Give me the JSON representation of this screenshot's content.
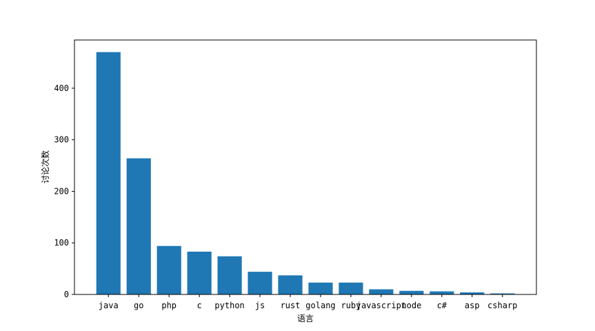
{
  "chart_data": {
    "type": "bar",
    "title": "",
    "xlabel": "语言",
    "ylabel": "讨论次数",
    "categories": [
      "java",
      "go",
      "php",
      "c",
      "python",
      "js",
      "rust",
      "golang",
      "ruby",
      "javascript",
      "node",
      "c#",
      "asp",
      "csharp"
    ],
    "values": [
      470,
      264,
      94,
      83,
      74,
      44,
      37,
      23,
      23,
      10,
      7,
      6,
      4,
      2
    ],
    "yticks": [
      0,
      100,
      200,
      300,
      400
    ],
    "ylim": [
      0,
      493.5
    ],
    "grid": false,
    "bar_color": "#1f77b4"
  }
}
